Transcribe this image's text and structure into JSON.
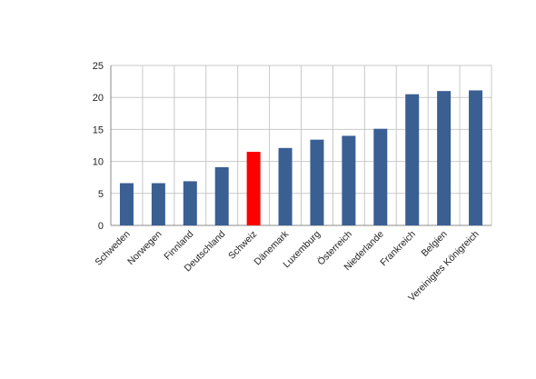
{
  "chart_data": {
    "type": "bar",
    "title": "",
    "xlabel": "",
    "ylabel": "",
    "categories": [
      "Schweden",
      "Norwegen",
      "Finnland",
      "Deutschland",
      "Schweiz",
      "Dänemark",
      "Luxemburg",
      "Österreich",
      "Niederlande",
      "Frankreich",
      "Belgien",
      "Vereinigtes Königreich"
    ],
    "values": [
      6.6,
      6.6,
      6.9,
      9.1,
      11.5,
      12.1,
      13.4,
      14.0,
      15.1,
      20.5,
      21.0,
      21.1
    ],
    "ylim": [
      0,
      25
    ],
    "yticks": [
      "0",
      "5",
      "10",
      "15",
      "20",
      "25"
    ],
    "grid": true,
    "legend": "none",
    "colors": {
      "bar": "#3a5f93",
      "highlight": "#ff0000",
      "grid": "#c8c8c8",
      "axis": "#888888"
    },
    "highlight_index": 4
  }
}
